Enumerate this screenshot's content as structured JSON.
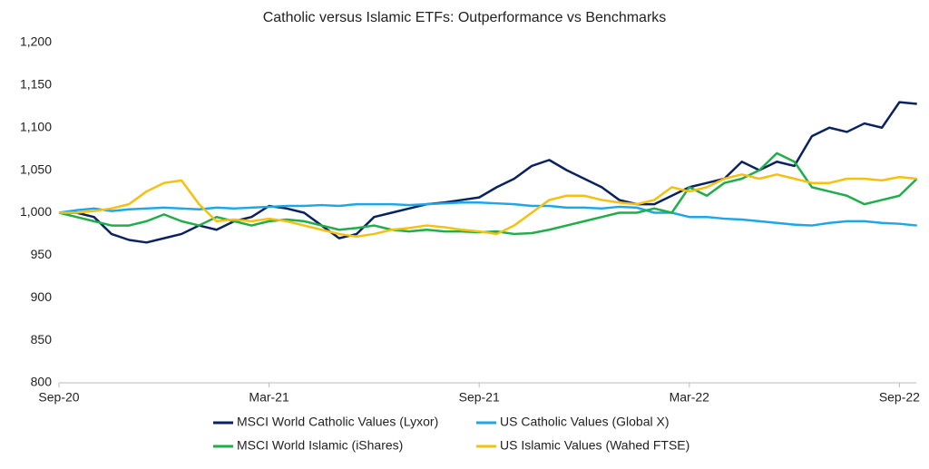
{
  "chart_data": {
    "type": "line",
    "title": "Catholic versus Islamic ETFs: Outperformance vs Benchmarks",
    "categories": [
      "Sep-20",
      null,
      null,
      null,
      null,
      null,
      null,
      null,
      null,
      null,
      null,
      null,
      "Mar-21",
      null,
      null,
      null,
      null,
      null,
      null,
      null,
      null,
      null,
      null,
      null,
      "Sep-21",
      null,
      null,
      null,
      null,
      null,
      null,
      null,
      null,
      null,
      null,
      null,
      "Mar-22",
      null,
      null,
      null,
      null,
      null,
      null,
      null,
      null,
      null,
      null,
      null,
      "Sep-22",
      null
    ],
    "ylim": [
      800,
      1200
    ],
    "yticks": [
      800,
      850,
      900,
      950,
      {
        "value": 1000,
        "label": "1,000"
      },
      {
        "value": 1050,
        "label": "1,050"
      },
      {
        "value": 1100,
        "label": "1,100"
      },
      {
        "value": 1150,
        "label": "1,150"
      },
      {
        "value": 1200,
        "label": "1,200"
      }
    ],
    "grid": false,
    "series": [
      {
        "name": "MSCI World Catholic Values (Lyxor)",
        "color": "#0b2260",
        "values": [
          1000,
          1000,
          995,
          975,
          968,
          965,
          970,
          975,
          985,
          980,
          990,
          995,
          1008,
          1005,
          1000,
          985,
          970,
          975,
          995,
          1000,
          1005,
          1010,
          1012,
          1015,
          1018,
          1030,
          1040,
          1055,
          1062,
          1050,
          1040,
          1030,
          1015,
          1010,
          1010,
          1020,
          1030,
          1035,
          1040,
          1060,
          1050,
          1060,
          1055,
          1090,
          1100,
          1095,
          1105,
          1100,
          1130,
          1128
        ]
      },
      {
        "name": "US Catholic Values (Global X)",
        "color": "#1ea7e8",
        "values": [
          1000,
          1003,
          1005,
          1002,
          1004,
          1005,
          1006,
          1005,
          1004,
          1006,
          1005,
          1006,
          1007,
          1008,
          1008,
          1009,
          1008,
          1010,
          1010,
          1010,
          1009,
          1010,
          1011,
          1012,
          1012,
          1011,
          1010,
          1008,
          1008,
          1006,
          1006,
          1005,
          1007,
          1006,
          1000,
          1000,
          995,
          995,
          993,
          992,
          990,
          988,
          986,
          985,
          988,
          990,
          990,
          988,
          987,
          985
        ]
      },
      {
        "name": "MSCI World Islamic (iShares)",
        "color": "#1fae4a",
        "values": [
          1000,
          995,
          990,
          985,
          985,
          990,
          998,
          990,
          985,
          995,
          990,
          985,
          990,
          992,
          990,
          985,
          980,
          982,
          985,
          980,
          978,
          980,
          978,
          978,
          977,
          978,
          975,
          976,
          980,
          985,
          990,
          995,
          1000,
          1000,
          1005,
          1000,
          1030,
          1020,
          1035,
          1040,
          1050,
          1070,
          1060,
          1030,
          1025,
          1020,
          1010,
          1015,
          1020,
          1040
        ]
      },
      {
        "name": "US Islamic Values (Wahed FTSE)",
        "color": "#f5c00f",
        "values": [
          1000,
          1000,
          1002,
          1005,
          1010,
          1025,
          1035,
          1038,
          1010,
          990,
          992,
          990,
          993,
          990,
          985,
          980,
          975,
          972,
          975,
          980,
          982,
          985,
          983,
          980,
          978,
          975,
          985,
          1000,
          1015,
          1020,
          1020,
          1015,
          1012,
          1010,
          1015,
          1030,
          1025,
          1030,
          1040,
          1045,
          1040,
          1045,
          1040,
          1035,
          1035,
          1040,
          1040,
          1038,
          1042,
          1040
        ]
      }
    ]
  }
}
